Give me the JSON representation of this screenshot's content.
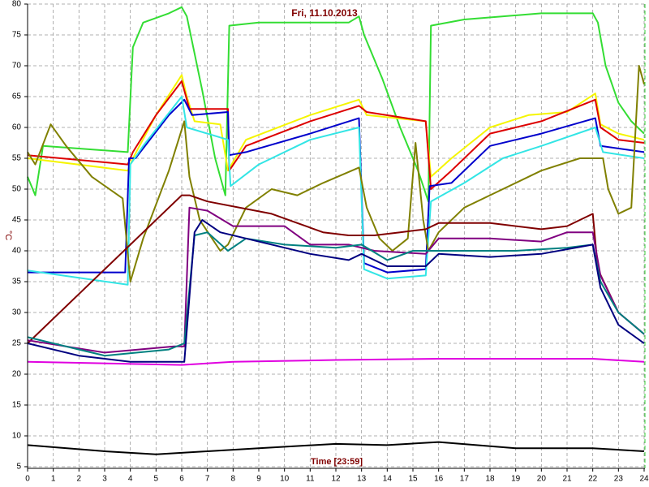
{
  "chart_data": {
    "type": "line",
    "title": "Fri, 11.10.2013",
    "x_label": "Time [23:59]",
    "y_label": "°C",
    "xlim": [
      0,
      24
    ],
    "xticks": [
      0,
      1,
      2,
      3,
      4,
      5,
      6,
      7,
      8,
      9,
      10,
      11,
      12,
      13,
      14,
      15,
      16,
      17,
      18,
      19,
      20,
      21,
      22,
      23,
      24
    ],
    "ylim": [
      5,
      80
    ],
    "yticks": [
      5,
      10,
      15,
      20,
      25,
      30,
      35,
      40,
      45,
      50,
      55,
      60,
      65,
      70,
      75,
      80
    ],
    "grid": true,
    "series": [
      {
        "color": "#33dd33",
        "x": [
          0,
          0.3,
          0.6,
          3.9,
          4.1,
          4.5,
          5.5,
          6,
          6.2,
          6.8,
          7.3,
          7.7,
          7.85,
          9,
          12.5,
          12.9,
          13.1,
          13.8,
          14.5,
          15.2,
          15.6,
          15.7,
          17,
          20,
          22,
          22.2,
          22.5,
          23,
          23.5,
          24
        ],
        "values": [
          52,
          49,
          57,
          56,
          73,
          77,
          78.5,
          79.5,
          78,
          66,
          55,
          49,
          76.5,
          77,
          77,
          78,
          75,
          68,
          60,
          53,
          48,
          76.5,
          77.5,
          78.5,
          78.5,
          77,
          70,
          64,
          61,
          59
        ]
      },
      {
        "color": "#f5f500",
        "x": [
          0,
          3.9,
          4.1,
          5,
          6,
          6.2,
          6.5,
          7.5,
          7.8,
          8.5,
          11,
          12.9,
          13.2,
          15.5,
          15.7,
          16.5,
          18,
          19.5,
          21,
          22.1,
          22.3,
          23,
          24
        ],
        "values": [
          55,
          53,
          55,
          62,
          68.5,
          65,
          61,
          60.5,
          53,
          58,
          62,
          64.5,
          62,
          61,
          52,
          55,
          60,
          62,
          62.5,
          65.5,
          60.5,
          59,
          58
        ]
      },
      {
        "color": "#dd0000",
        "x": [
          0,
          3.9,
          4.1,
          5,
          6,
          6.3,
          7.8,
          7.85,
          8.5,
          11,
          12.9,
          13.2,
          15.5,
          15.7,
          16.5,
          18,
          20,
          22.1,
          22.3,
          23,
          24
        ],
        "values": [
          55.5,
          54,
          56,
          62,
          67.5,
          63,
          63,
          53,
          57,
          61,
          63.5,
          62.5,
          61,
          50,
          53,
          59,
          61,
          64.5,
          60,
          58,
          57.5
        ]
      },
      {
        "color": "#0000cc",
        "x": [
          0,
          3.8,
          3.95,
          4.2,
          5.5,
          6.1,
          6.4,
          7.8,
          7.85,
          8.5,
          11,
          12.9,
          13.1,
          14,
          15.5,
          15.65,
          16.5,
          18,
          20,
          22.1,
          22.3,
          24
        ],
        "values": [
          36.5,
          36.5,
          55,
          55,
          62,
          64.5,
          62,
          62.5,
          55.5,
          56,
          59,
          61.5,
          38,
          36.5,
          37,
          50.5,
          51,
          57,
          59,
          61.5,
          57,
          56
        ]
      },
      {
        "color": "#33e5e5",
        "x": [
          0,
          3.9,
          4,
          4.5,
          6,
          6.2,
          7.8,
          7.9,
          9,
          11,
          12.9,
          13.1,
          14,
          15.5,
          15.7,
          17,
          18.5,
          20,
          22.1,
          22.4,
          24
        ],
        "values": [
          36.8,
          34.5,
          54,
          57,
          65,
          60,
          58,
          50.5,
          54,
          58,
          60,
          37,
          35.5,
          36,
          48,
          51,
          55,
          57,
          60,
          56,
          55
        ]
      },
      {
        "color": "#808000",
        "x": [
          0,
          0.3,
          0.9,
          1.5,
          2.5,
          3.7,
          4,
          4.5,
          5.5,
          6.1,
          6.3,
          6.7,
          7.5,
          7.8,
          8.5,
          9.5,
          10.5,
          11.5,
          12.9,
          13.2,
          13.7,
          14.2,
          14.8,
          15.1,
          15.4,
          15.6,
          16,
          17,
          18.5,
          20,
          21.5,
          22.4,
          22.6,
          23,
          23.5,
          23.8,
          24
        ],
        "values": [
          56,
          54,
          60.5,
          57,
          52,
          48.5,
          35,
          42,
          53,
          61,
          52,
          45,
          40,
          41,
          47,
          50,
          49,
          51,
          53.5,
          47,
          42,
          40,
          42,
          57.5,
          45,
          40,
          43,
          47,
          50,
          53,
          55,
          55,
          50,
          46,
          47,
          70,
          67
        ]
      },
      {
        "color": "#800000",
        "x": [
          0,
          6,
          6.3,
          7,
          9.5,
          10.5,
          11.5,
          12.5,
          13.5,
          14.5,
          15.5,
          16,
          18,
          20,
          21,
          22,
          22.2,
          23,
          24
        ],
        "values": [
          25,
          49,
          49,
          48,
          46,
          44.5,
          43,
          42.5,
          42.5,
          43,
          43.5,
          44.5,
          44.5,
          43.5,
          44,
          46,
          37,
          30,
          26.5
        ]
      },
      {
        "color": "#800080",
        "x": [
          0,
          3,
          5.7,
          6.1,
          6.3,
          7,
          8,
          10,
          11,
          12.5,
          13.5,
          15.5,
          16,
          18,
          20,
          21,
          22,
          22.3,
          23,
          24
        ],
        "values": [
          25.5,
          23.5,
          24.5,
          24.5,
          47,
          46.5,
          44,
          44,
          41,
          41,
          40,
          39.5,
          42,
          42,
          41.5,
          43,
          43,
          36,
          30,
          26.5
        ]
      },
      {
        "color": "#008080",
        "x": [
          0,
          2,
          3,
          5.5,
          6.1,
          6.5,
          7,
          7.8,
          8.5,
          10,
          12,
          13,
          14,
          15,
          16,
          19,
          21,
          22,
          22.3,
          23,
          24
        ],
        "values": [
          26,
          24,
          23,
          24,
          25,
          42.5,
          43,
          40,
          42,
          41,
          40.5,
          41,
          38.5,
          40,
          40,
          40,
          40.5,
          41,
          35,
          30,
          26.5
        ]
      },
      {
        "color": "#000080",
        "x": [
          0,
          2,
          4,
          6.1,
          6.5,
          6.8,
          7.5,
          8.5,
          10,
          11,
          12.5,
          13,
          14,
          15.5,
          16,
          18,
          20,
          22,
          22.3,
          23,
          24
        ],
        "values": [
          25,
          23,
          22,
          22,
          43,
          45,
          43,
          42,
          40.5,
          39.5,
          38.5,
          39.5,
          37.5,
          37.5,
          39.5,
          39,
          39.5,
          41,
          34,
          28,
          25
        ]
      },
      {
        "color": "#e000e0",
        "x": [
          0,
          6,
          8,
          12,
          16,
          22,
          24
        ],
        "values": [
          22,
          21.5,
          22,
          22.3,
          22.5,
          22.5,
          22
        ]
      },
      {
        "color": "#000000",
        "x": [
          0,
          3,
          5,
          7,
          9,
          12,
          14,
          16,
          19,
          22,
          24
        ],
        "values": [
          8.5,
          7.5,
          7,
          7.5,
          8,
          8.7,
          8.5,
          9,
          8,
          8,
          7.5
        ]
      }
    ]
  }
}
